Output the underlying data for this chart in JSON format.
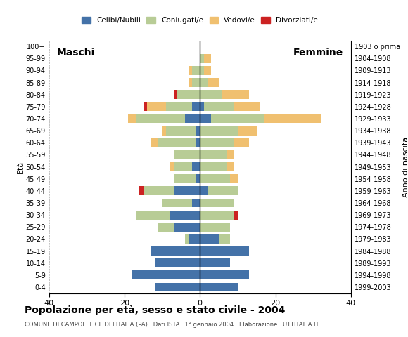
{
  "age_groups": [
    "100+",
    "95-99",
    "90-94",
    "85-89",
    "80-84",
    "75-79",
    "70-74",
    "65-69",
    "60-64",
    "55-59",
    "50-54",
    "45-49",
    "40-44",
    "35-39",
    "30-34",
    "25-29",
    "20-24",
    "15-19",
    "10-14",
    "5-9",
    "0-4"
  ],
  "birth_years": [
    "1903 o prima",
    "1904-1908",
    "1909-1913",
    "1914-1918",
    "1919-1923",
    "1924-1928",
    "1929-1933",
    "1934-1938",
    "1939-1943",
    "1944-1948",
    "1949-1953",
    "1954-1958",
    "1959-1963",
    "1964-1968",
    "1969-1973",
    "1974-1978",
    "1979-1983",
    "1984-1988",
    "1989-1993",
    "1994-1998",
    "1999-2003"
  ],
  "colors": {
    "celibe": "#4472a8",
    "coniugato": "#b8cc96",
    "vedovo": "#f0c070",
    "divorziato": "#cc2222"
  },
  "maschi": {
    "celibe": [
      0,
      0,
      0,
      0,
      0,
      2,
      4,
      1,
      1,
      0,
      2,
      1,
      7,
      2,
      8,
      7,
      3,
      13,
      12,
      18,
      12
    ],
    "coniugato": [
      0,
      0,
      2,
      2,
      6,
      7,
      13,
      8,
      10,
      7,
      5,
      6,
      8,
      8,
      9,
      4,
      1,
      0,
      0,
      0,
      0
    ],
    "vedovo": [
      0,
      0,
      1,
      1,
      0,
      5,
      2,
      1,
      2,
      0,
      1,
      0,
      0,
      0,
      0,
      0,
      0,
      0,
      0,
      0,
      0
    ],
    "divorziato": [
      0,
      0,
      0,
      0,
      1,
      1,
      0,
      0,
      0,
      0,
      0,
      0,
      1,
      0,
      0,
      0,
      0,
      0,
      0,
      0,
      0
    ]
  },
  "femmine": {
    "celibe": [
      0,
      0,
      0,
      0,
      0,
      1,
      3,
      0,
      0,
      0,
      0,
      0,
      2,
      0,
      0,
      0,
      5,
      13,
      8,
      13,
      10
    ],
    "coniugato": [
      0,
      1,
      1,
      2,
      6,
      8,
      14,
      10,
      9,
      7,
      7,
      8,
      8,
      9,
      9,
      8,
      3,
      0,
      0,
      0,
      0
    ],
    "vedovo": [
      0,
      2,
      2,
      3,
      7,
      7,
      15,
      5,
      4,
      2,
      2,
      2,
      0,
      0,
      0,
      0,
      0,
      0,
      0,
      0,
      0
    ],
    "divorziato": [
      0,
      0,
      0,
      0,
      0,
      0,
      0,
      0,
      0,
      0,
      0,
      0,
      0,
      0,
      1,
      0,
      0,
      0,
      0,
      0,
      0
    ]
  },
  "title": "Popolazione per età, sesso e stato civile - 2004",
  "subtitle": "COMUNE DI CAMPOFELICE DI FITALIA (PA) · Dati ISTAT 1° gennaio 2004 · Elaborazione TUTTITALIA.IT",
  "xlabel_left": "Maschi",
  "xlabel_right": "Femmine",
  "ylabel_left": "Età",
  "ylabel_right": "Anno di nascita",
  "xlim": 40,
  "legend_labels": [
    "Celibi/Nubili",
    "Coniugati/e",
    "Vedovi/e",
    "Divorziati/e"
  ]
}
